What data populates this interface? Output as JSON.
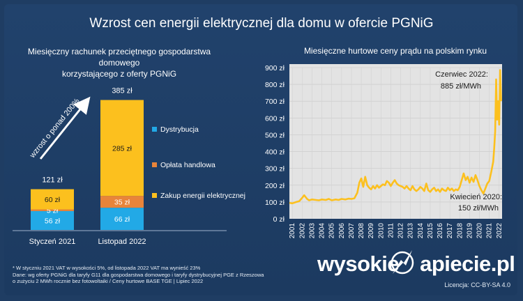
{
  "title": "Wzrost cen energii elektrycznej dla domu w ofercie PGNiG",
  "colors": {
    "background": "#1f3d63",
    "distribution": "#22a9e6",
    "fee": "#e8843a",
    "energy": "#fcc01e",
    "line": "#fcc01e",
    "plot_bg": "#e3e3e3"
  },
  "chart_data": [
    {
      "type": "bar",
      "stacked": true,
      "title": "Miesięczny rachunek przeciętnego gospodarstwa domowego korzystającego z oferty PGNiG",
      "title_line1": "Miesięczny rachunek przeciętnego gospodarstwa domowego",
      "title_line2": "korzystającego z oferty PGNiG",
      "categories": [
        "Styczeń 2021",
        "Listopad 2022"
      ],
      "totals": [
        "121 zł",
        "385 zł"
      ],
      "series": [
        {
          "name": "Dystrybucja",
          "values": [
            56,
            66
          ],
          "labels": [
            "56 zł",
            "66 zł"
          ]
        },
        {
          "name": "Opłata handlowa",
          "values": [
            5,
            35
          ],
          "labels": [
            "5 zł",
            "35 zł"
          ]
        },
        {
          "name": "Zakup energii elektrycznej",
          "values": [
            60,
            285
          ],
          "labels": [
            "60 zł",
            "285 zł"
          ]
        }
      ],
      "annotation": "wzrost o ponad 200%",
      "ylim": [
        0,
        385
      ]
    },
    {
      "type": "line",
      "title": "Miesięczne hurtowe ceny prądu na polskim rynku",
      "x_ticks": [
        "2001",
        "2002",
        "2003",
        "2004",
        "2005",
        "2006",
        "2007",
        "2008",
        "2009",
        "2010",
        "2011",
        "2012",
        "2013",
        "2014",
        "2015",
        "2016",
        "2017",
        "2018",
        "2019",
        "2020",
        "2021",
        "2022"
      ],
      "y_ticks": [
        "0 zł",
        "100 zł",
        "200 zł",
        "300 zł",
        "400 zł",
        "500 zł",
        "600 zł",
        "700 zł",
        "800 zł",
        "900 zł"
      ],
      "ylim": [
        0,
        900
      ],
      "xlim": [
        2001,
        2022.6
      ],
      "series": [
        {
          "name": "BASE TGE",
          "x": [
            2001.0,
            2001.3,
            2001.7,
            2002.0,
            2002.3,
            2002.5,
            2002.8,
            2003.0,
            2003.3,
            2003.7,
            2004.0,
            2004.3,
            2004.7,
            2005.0,
            2005.3,
            2005.7,
            2006.0,
            2006.3,
            2006.7,
            2007.0,
            2007.3,
            2007.6,
            2007.9,
            2008.1,
            2008.3,
            2008.5,
            2008.7,
            2008.9,
            2009.1,
            2009.3,
            2009.5,
            2009.7,
            2009.9,
            2010.1,
            2010.3,
            2010.5,
            2010.7,
            2010.9,
            2011.1,
            2011.3,
            2011.5,
            2011.7,
            2011.9,
            2012.1,
            2012.3,
            2012.5,
            2012.7,
            2012.9,
            2013.1,
            2013.3,
            2013.5,
            2013.7,
            2013.9,
            2014.1,
            2014.3,
            2014.5,
            2014.7,
            2014.9,
            2015.1,
            2015.3,
            2015.5,
            2015.7,
            2015.9,
            2016.1,
            2016.3,
            2016.5,
            2016.7,
            2016.9,
            2017.1,
            2017.3,
            2017.5,
            2017.7,
            2017.9,
            2018.1,
            2018.3,
            2018.5,
            2018.7,
            2018.9,
            2019.1,
            2019.3,
            2019.5,
            2019.7,
            2019.9,
            2020.1,
            2020.3,
            2020.5,
            2020.7,
            2020.9,
            2021.1,
            2021.3,
            2021.5,
            2021.7,
            2021.8,
            2021.9,
            2022.0,
            2022.1,
            2022.2,
            2022.3,
            2022.4,
            2022.5
          ],
          "values": [
            95,
            92,
            100,
            105,
            125,
            140,
            118,
            110,
            115,
            112,
            110,
            115,
            112,
            118,
            110,
            115,
            112,
            118,
            115,
            120,
            118,
            122,
            155,
            215,
            240,
            190,
            250,
            200,
            185,
            175,
            195,
            180,
            200,
            185,
            195,
            205,
            200,
            225,
            215,
            195,
            215,
            230,
            210,
            200,
            195,
            190,
            180,
            195,
            180,
            170,
            195,
            175,
            165,
            175,
            190,
            180,
            165,
            210,
            170,
            160,
            175,
            185,
            165,
            175,
            160,
            180,
            170,
            165,
            185,
            170,
            180,
            165,
            175,
            170,
            190,
            230,
            270,
            230,
            250,
            215,
            245,
            220,
            260,
            230,
            195,
            170,
            150,
            180,
            210,
            225,
            280,
            340,
            420,
            520,
            830,
            590,
            700,
            560,
            885,
            700
          ]
        }
      ],
      "annotations": [
        {
          "line1": "Czerwiec 2022:",
          "line2": "885 zł/MWh"
        },
        {
          "line1": "Kwiecień 2020:",
          "line2": "150 zł/MWh"
        }
      ]
    }
  ],
  "footnote": {
    "line1": "* W styczniu 2021 VAT w wysokości 5%, od listopada 2022 VAT ma wynieść 23%",
    "line2": "Dane: wg oferty PGNiG dla taryfy G11 dla gospodarstwa domowego i taryfy dystrybucyjnej PGE z Rzeszowa",
    "line3": "o zużyciu 2 MWh rocznie bez fotowoltaiki  /  Ceny hurtowe BASE TGE  |  Lipiec 2022"
  },
  "brand": {
    "left": "wysokie",
    "right": "apiecie.pl"
  },
  "license": "Licencja: CC-BY-SA 4.0"
}
